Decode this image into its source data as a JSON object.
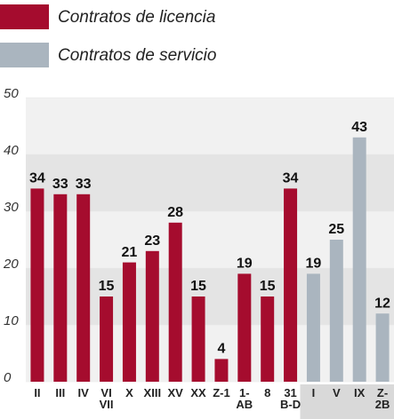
{
  "chart_data": {
    "type": "bar",
    "categories": [
      "II",
      "III",
      "IV",
      "VI\nVII",
      "X",
      "XIII",
      "XV",
      "XX",
      "Z-1",
      "1-\nAB",
      "8",
      "31\nB-D",
      "I",
      "V",
      "IX",
      "Z-\n2B"
    ],
    "series": [
      {
        "name": "Contratos de licencia",
        "color": "#a50c2e",
        "values": [
          34,
          33,
          33,
          15,
          21,
          23,
          28,
          15,
          4,
          19,
          15,
          34,
          null,
          null,
          null,
          null
        ]
      },
      {
        "name": "Contratos de servicio",
        "color": "#aab5bf",
        "values": [
          null,
          null,
          null,
          null,
          null,
          null,
          null,
          null,
          null,
          null,
          null,
          null,
          19,
          25,
          43,
          12
        ]
      }
    ],
    "ylim": [
      0,
      50
    ],
    "yticks": [
      0,
      10,
      20,
      30,
      40,
      50
    ],
    "grid": true
  }
}
